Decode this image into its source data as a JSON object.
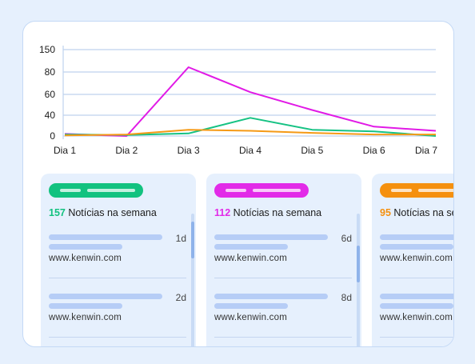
{
  "chart_data": {
    "type": "line",
    "categories": [
      "Dia 1",
      "Dia 2",
      "Dia 3",
      "Dia 4",
      "Dia 5",
      "Dia 6",
      "Dia 7"
    ],
    "y_ticks": [
      0,
      40,
      60,
      80,
      150
    ],
    "grid": true,
    "series": [
      {
        "color": "#e11ae6",
        "values": [
          4,
          0,
          95,
          62,
          45,
          18,
          10
        ]
      },
      {
        "color": "#15c283",
        "values": [
          3,
          2,
          5,
          35,
          12,
          9,
          0
        ]
      },
      {
        "color": "#f59a16",
        "values": [
          1,
          3,
          12,
          10,
          6,
          3,
          3
        ]
      }
    ]
  },
  "cards": [
    {
      "accent": "#12c27f",
      "count": "157",
      "label": " Notícias na semana",
      "items": [
        {
          "age": "1d",
          "source": "www.kenwin.com"
        },
        {
          "age": "2d",
          "source": "www.kenwin.com"
        }
      ]
    },
    {
      "accent": "#e22be8",
      "count": "112",
      "label": " Notícias na semana",
      "items": [
        {
          "age": "6d",
          "source": "www.kenwin.com"
        },
        {
          "age": "8d",
          "source": "www.kenwin.com"
        }
      ]
    },
    {
      "accent": "#f5900e",
      "count": "95",
      "label": " Notícias na semana",
      "items": [
        {
          "age": "",
          "source": "www.kenwin.com"
        },
        {
          "age": "",
          "source": "www.kenwin.com"
        }
      ]
    }
  ]
}
